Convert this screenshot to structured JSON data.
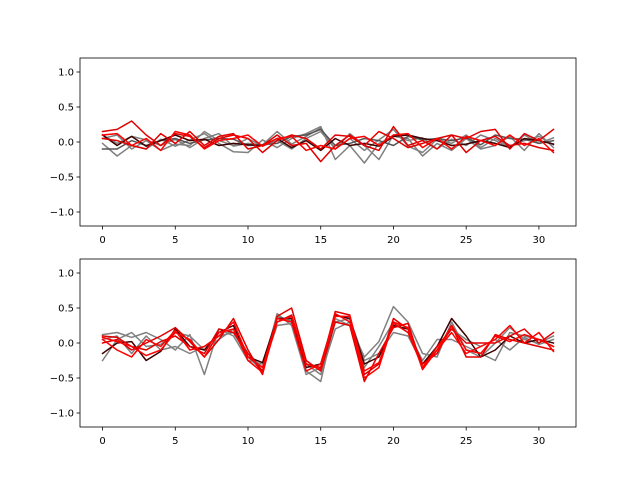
{
  "chart_data": [
    {
      "type": "line",
      "title": "",
      "xlabel": "",
      "ylabel": "",
      "xlim": [
        -1.55,
        32.55
      ],
      "ylim": [
        -1.2,
        1.2
      ],
      "xticks": [
        0,
        5,
        10,
        15,
        20,
        25,
        30
      ],
      "yticks": [
        -1.0,
        -0.5,
        0.0,
        0.5,
        1.0
      ],
      "xtick_labels": [
        "0",
        "5",
        "10",
        "15",
        "20",
        "25",
        "30"
      ],
      "ytick_labels": [
        "−1.0",
        "−0.5",
        "0.0",
        "0.5",
        "1.0"
      ],
      "grid": false,
      "x": [
        0,
        1,
        2,
        3,
        4,
        5,
        6,
        7,
        8,
        9,
        10,
        11,
        12,
        13,
        14,
        15,
        16,
        17,
        18,
        19,
        20,
        21,
        22,
        23,
        24,
        25,
        26,
        27,
        28,
        29,
        30,
        31
      ],
      "series": [
        {
          "color": "#808080",
          "values": [
            0.1,
            -0.02,
            0.08,
            0.03,
            -0.05,
            0.04,
            -0.08,
            0.05,
            0.12,
            -0.06,
            -0.02,
            -0.04,
            0.15,
            -0.03,
            0.08,
            0.2,
            -0.1,
            0.05,
            -0.12,
            0.03,
            0.18,
            -0.06,
            -0.15,
            0.04,
            -0.02,
            0.1,
            -0.08,
            0.05,
            -0.06,
            0.02,
            0.08,
            -0.04
          ]
        },
        {
          "color": "#808080",
          "values": [
            -0.02,
            -0.2,
            -0.05,
            -0.1,
            0.04,
            -0.06,
            0.03,
            0.12,
            -0.02,
            -0.14,
            -0.15,
            0.03,
            -0.08,
            0.05,
            0.12,
            0.22,
            -0.25,
            -0.05,
            -0.3,
            -0.02,
            0.08,
            0.05,
            -0.2,
            -0.02,
            -0.12,
            0.05,
            -0.1,
            -0.05,
            0.08,
            -0.12,
            0.12,
            -0.08
          ]
        },
        {
          "color": "#808080",
          "values": [
            0.05,
            0.1,
            -0.1,
            0.02,
            -0.12,
            -0.03,
            -0.05,
            0.15,
            0.02,
            -0.05,
            0.05,
            -0.06,
            0.02,
            -0.1,
            0.05,
            0.15,
            -0.1,
            0.12,
            -0.05,
            -0.25,
            0.1,
            0.02,
            0.06,
            -0.1,
            0.04,
            -0.05,
            0.1,
            0.02,
            -0.08,
            0.1,
            -0.02,
            0.06
          ]
        },
        {
          "color": "#555555",
          "values": [
            -0.1,
            -0.1,
            0.02,
            -0.05,
            0.02,
            0.05,
            -0.02,
            0.03,
            0.05,
            0.04,
            -0.05,
            -0.04,
            -0.02,
            0.08,
            0.1,
            0.18,
            -0.05,
            -0.02,
            0.05,
            0.02,
            -0.05,
            0.08,
            0.03,
            0.05,
            0.02,
            0.06,
            -0.04,
            0.1,
            0.05,
            0.04,
            -0.02,
            0.02
          ]
        },
        {
          "color": "#3c0000",
          "values": [
            0.1,
            -0.05,
            0.08,
            -0.06,
            0.02,
            0.1,
            0.02,
            0.04,
            -0.05,
            -0.02,
            -0.04,
            -0.05,
            0.05,
            -0.08,
            0.02,
            -0.12,
            0.05,
            -0.05,
            -0.02,
            -0.06,
            0.08,
            0.1,
            0.05,
            0.02,
            -0.05,
            -0.03,
            0.02,
            -0.02,
            -0.08,
            0.05,
            0.02,
            -0.03
          ]
        },
        {
          "color": "#e00000",
          "values": [
            0.15,
            0.18,
            0.3,
            0.1,
            -0.05,
            0.12,
            0.08,
            -0.08,
            0.05,
            0.1,
            0.05,
            -0.15,
            0.02,
            0.1,
            0.05,
            -0.1,
            0.1,
            0.08,
            -0.05,
            0.15,
            0.05,
            -0.08,
            -0.02,
            0.05,
            0.1,
            0.05,
            0.15,
            0.18,
            -0.1,
            0.12,
            0.02,
            0.18
          ]
        },
        {
          "color": "#e00000",
          "values": [
            0.05,
            0.02,
            -0.05,
            -0.1,
            0.12,
            -0.02,
            0.15,
            -0.05,
            0.08,
            0.12,
            -0.1,
            -0.05,
            0.1,
            -0.05,
            -0.02,
            -0.28,
            -0.05,
            0.1,
            -0.05,
            -0.12,
            0.22,
            -0.05,
            0.02,
            -0.1,
            0.1,
            -0.15,
            0.02,
            0.08,
            -0.05,
            -0.02,
            -0.08,
            -0.12
          ]
        },
        {
          "color": "#ff0000",
          "values": [
            0.1,
            0.12,
            -0.05,
            0.05,
            -0.12,
            0.15,
            0.1,
            -0.1,
            0.02,
            0.05,
            0.1,
            -0.06,
            0.05,
            0.08,
            -0.12,
            -0.05,
            -0.1,
            0.05,
            0.08,
            -0.05,
            0.1,
            0.12,
            -0.08,
            0.05,
            -0.1,
            0.08,
            0.02,
            -0.05,
            0.1,
            -0.05,
            0.05,
            -0.15
          ]
        }
      ]
    },
    {
      "type": "line",
      "title": "",
      "xlabel": "",
      "ylabel": "",
      "xlim": [
        -1.55,
        32.55
      ],
      "ylim": [
        -1.2,
        1.2
      ],
      "xticks": [
        0,
        5,
        10,
        15,
        20,
        25,
        30
      ],
      "yticks": [
        -1.0,
        -0.5,
        0.0,
        0.5,
        1.0
      ],
      "xtick_labels": [
        "0",
        "5",
        "10",
        "15",
        "20",
        "25",
        "30"
      ],
      "ytick_labels": [
        "−1.0",
        "−0.5",
        "0.0",
        "0.5",
        "1.0"
      ],
      "grid": false,
      "x": [
        0,
        1,
        2,
        3,
        4,
        5,
        6,
        7,
        8,
        9,
        10,
        11,
        12,
        13,
        14,
        15,
        16,
        17,
        18,
        19,
        20,
        21,
        22,
        23,
        24,
        25,
        26,
        27,
        28,
        29,
        30,
        31
      ],
      "series": [
        {
          "color": "#808080",
          "values": [
            0.12,
            0.15,
            0.08,
            0.15,
            0.05,
            -0.1,
            0.12,
            -0.45,
            0.2,
            0.1,
            -0.25,
            -0.3,
            0.38,
            0.32,
            -0.4,
            -0.55,
            0.35,
            0.25,
            -0.2,
            0.02,
            0.52,
            0.3,
            -0.15,
            -0.2,
            0.3,
            -0.1,
            -0.2,
            0.0,
            0.22,
            0.05,
            0.0,
            0.1
          ]
        },
        {
          "color": "#808080",
          "values": [
            -0.25,
            0.05,
            0.15,
            -0.05,
            -0.02,
            0.15,
            0.1,
            -0.1,
            0.05,
            0.2,
            -0.15,
            -0.35,
            0.25,
            0.28,
            -0.3,
            -0.45,
            0.2,
            0.3,
            -0.35,
            -0.05,
            0.3,
            0.15,
            -0.25,
            0.05,
            0.05,
            -0.05,
            -0.15,
            -0.25,
            0.15,
            0.1,
            0.05,
            -0.05
          ]
        },
        {
          "color": "#808080",
          "values": [
            0.05,
            0.1,
            -0.15,
            0.1,
            -0.1,
            -0.05,
            -0.15,
            -0.05,
            0.1,
            0.15,
            -0.2,
            -0.4,
            0.42,
            0.25,
            -0.45,
            -0.35,
            0.3,
            0.35,
            -0.25,
            -0.15,
            0.15,
            0.1,
            -0.3,
            -0.1,
            0.2,
            0.05,
            -0.05,
            0.05,
            -0.1,
            0.08,
            -0.02,
            0.05
          ]
        },
        {
          "color": "#3c0000",
          "values": [
            -0.15,
            0.0,
            0.02,
            -0.25,
            -0.12,
            0.2,
            -0.05,
            -0.1,
            0.15,
            0.25,
            -0.2,
            -0.28,
            0.35,
            0.35,
            -0.35,
            -0.3,
            0.4,
            0.35,
            -0.3,
            -0.2,
            0.25,
            0.2,
            -0.3,
            -0.05,
            0.35,
            0.1,
            -0.2,
            -0.1,
            0.1,
            0.0,
            0.05,
            0.0
          ]
        },
        {
          "color": "#e00000",
          "values": [
            0.0,
            0.05,
            -0.1,
            0.0,
            0.1,
            0.22,
            0.02,
            -0.2,
            0.05,
            0.35,
            -0.1,
            -0.45,
            0.38,
            0.5,
            -0.25,
            -0.4,
            0.3,
            0.25,
            -0.55,
            -0.15,
            0.22,
            0.28,
            -0.35,
            -0.05,
            0.2,
            0.0,
            0.0,
            0.0,
            0.1,
            0.2,
            0.0,
            0.15
          ]
        },
        {
          "color": "#e00000",
          "values": [
            0.1,
            0.08,
            -0.05,
            -0.1,
            0.02,
            0.1,
            -0.05,
            -0.15,
            0.2,
            0.15,
            -0.15,
            -0.4,
            0.3,
            0.4,
            -0.3,
            -0.35,
            0.45,
            0.4,
            -0.45,
            -0.3,
            0.35,
            0.2,
            -0.3,
            -0.15,
            0.25,
            -0.2,
            -0.2,
            0.12,
            0.05,
            0.0,
            -0.05,
            -0.1
          ]
        },
        {
          "color": "#ff0000",
          "values": [
            0.05,
            -0.1,
            -0.2,
            0.05,
            -0.05,
            0.18,
            -0.1,
            -0.05,
            0.1,
            0.3,
            -0.2,
            -0.35,
            0.35,
            0.3,
            -0.4,
            -0.3,
            0.38,
            0.38,
            -0.4,
            -0.28,
            0.28,
            0.15,
            -0.35,
            -0.1,
            0.25,
            -0.1,
            -0.15,
            0.1,
            0.02,
            0.12,
            0.05,
            -0.05
          ]
        },
        {
          "color": "#ff0000",
          "values": [
            0.08,
            0.02,
            -0.05,
            -0.18,
            -0.1,
            0.15,
            0.05,
            -0.2,
            0.15,
            0.2,
            -0.25,
            -0.42,
            0.3,
            0.38,
            -0.3,
            -0.38,
            0.42,
            0.3,
            -0.5,
            -0.35,
            0.3,
            0.22,
            -0.38,
            -0.1,
            0.15,
            -0.15,
            -0.05,
            0.05,
            0.25,
            0.0,
            0.15,
            -0.12
          ]
        }
      ]
    }
  ]
}
